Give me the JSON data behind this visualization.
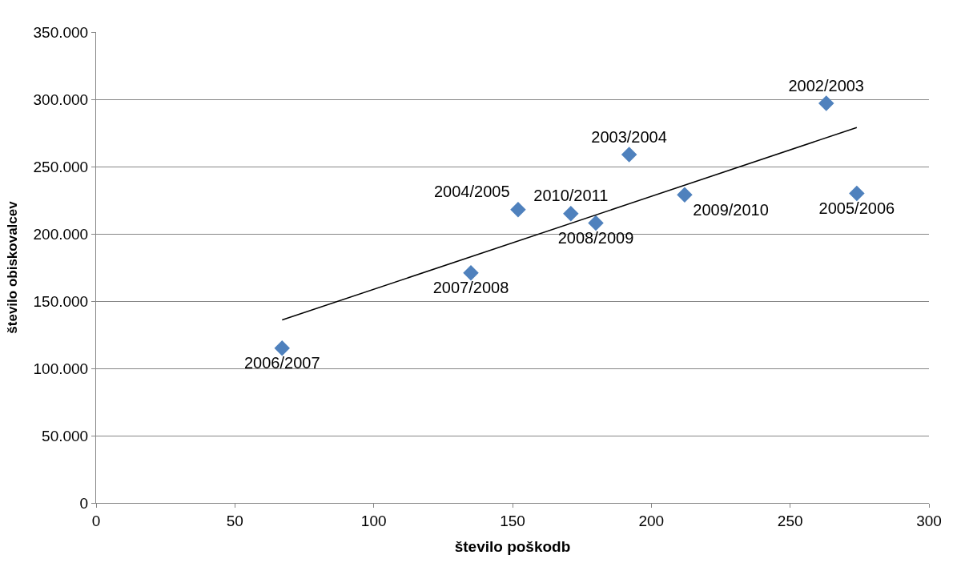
{
  "chart_data": {
    "type": "scatter",
    "xlabel": "število poškodb",
    "ylabel": "število obiskovalcev",
    "xlim": [
      0,
      300
    ],
    "xticks": [
      0,
      50,
      100,
      150,
      200,
      250,
      300
    ],
    "ylim": [
      0,
      350000
    ],
    "yticks": [
      {
        "value": 0,
        "label": "0"
      },
      {
        "value": 50000,
        "label": "50.000"
      },
      {
        "value": 100000,
        "label": "100.000"
      },
      {
        "value": 150000,
        "label": "150.000"
      },
      {
        "value": 200000,
        "label": "200.000"
      },
      {
        "value": 250000,
        "label": "250.000"
      },
      {
        "value": 300000,
        "label": "300.000"
      },
      {
        "value": 350000,
        "label": "350.000"
      }
    ],
    "grid": "y",
    "series": [
      {
        "marker": "diamond",
        "color": "#4f81bd",
        "x": [
          67,
          135,
          152,
          171,
          180,
          192,
          212,
          263,
          274
        ],
        "values": [
          115000,
          171000,
          218000,
          215000,
          208000,
          259000,
          229000,
          297000,
          230000
        ],
        "value_labels": [
          "2006/2007",
          "2007/2008",
          "2004/2005",
          "2010/2011",
          "2008/2009",
          "2003/2004",
          "2009/2010",
          "2002/2003",
          "2005/2006"
        ]
      },
      {
        "type": "line",
        "marker": "none",
        "color": "#000000",
        "x": [
          67,
          274
        ],
        "values": [
          136000,
          279000
        ]
      }
    ]
  }
}
